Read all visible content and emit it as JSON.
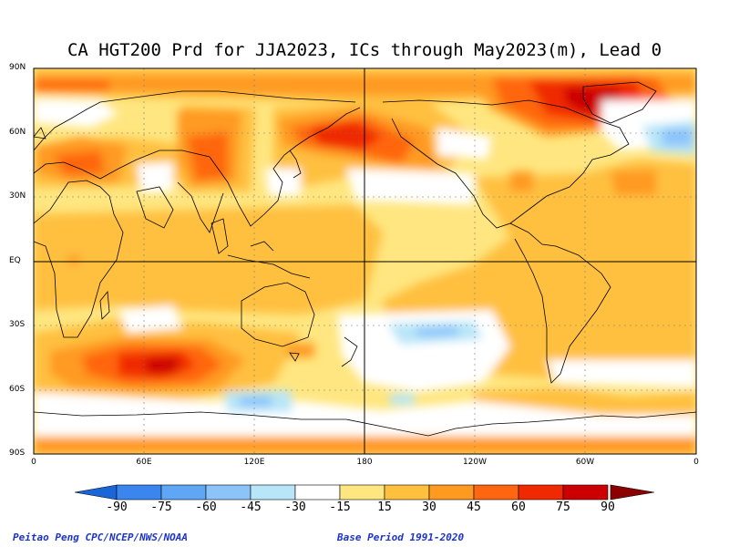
{
  "title": "CA HGT200 Prd for JJA2023, ICs through May2023(m), Lead 0",
  "lat_labels": [
    "90N",
    "60N",
    "30N",
    "EQ",
    "30S",
    "60S",
    "90S"
  ],
  "lon_labels": [
    "0",
    "60E",
    "120E",
    "180",
    "120W",
    "60W",
    "0"
  ],
  "colorbar": {
    "labels": [
      "-90",
      "-75",
      "-60",
      "-45",
      "-30",
      "-15",
      "15",
      "30",
      "45",
      "60",
      "75",
      "90"
    ],
    "colors": [
      "#1a66d9",
      "#3a86ee",
      "#5fa6f5",
      "#8cc4fa",
      "#b8e6f8",
      "#ffffff",
      "#ffe680",
      "#ffc040",
      "#ff9a20",
      "#ff6610",
      "#f02a00",
      "#cc0000",
      "#8c0000"
    ]
  },
  "footer": {
    "left": "Peitao Peng CPC/NCEP/NWS/NOAA",
    "right": "Base Period 1991-2020"
  }
}
